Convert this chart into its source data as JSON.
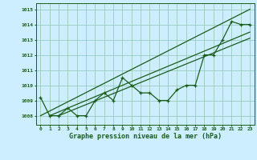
{
  "title": "Graphe pression niveau de la mer (hPa)",
  "bg_color": "#cceeff",
  "grid_color": "#99ccbb",
  "line_color": "#1a5c1a",
  "x_values": [
    0,
    1,
    2,
    3,
    4,
    5,
    6,
    7,
    8,
    9,
    10,
    11,
    12,
    13,
    14,
    15,
    16,
    17,
    18,
    19,
    20,
    21,
    22,
    23
  ],
  "pressure": [
    1009.2,
    1008.0,
    1008.0,
    1008.5,
    1008.0,
    1008.0,
    1009.0,
    1009.5,
    1009.0,
    1010.5,
    1010.0,
    1009.5,
    1009.5,
    1009.0,
    1009.0,
    1009.7,
    1010.0,
    1010.0,
    1012.0,
    1012.0,
    1013.0,
    1014.2,
    1014.0,
    1014.0
  ],
  "trend1_x": [
    0,
    23
  ],
  "trend1_y": [
    1008.0,
    1015.0
  ],
  "trend2_x": [
    1,
    23
  ],
  "trend2_y": [
    1008.0,
    1013.5
  ],
  "trend3_x": [
    2,
    23
  ],
  "trend3_y": [
    1008.0,
    1013.1
  ],
  "yticks": [
    1008,
    1009,
    1010,
    1011,
    1012,
    1013,
    1014,
    1015
  ],
  "ylim_min": 1007.4,
  "ylim_max": 1015.4,
  "xlim_min": -0.5,
  "xlim_max": 23.5
}
